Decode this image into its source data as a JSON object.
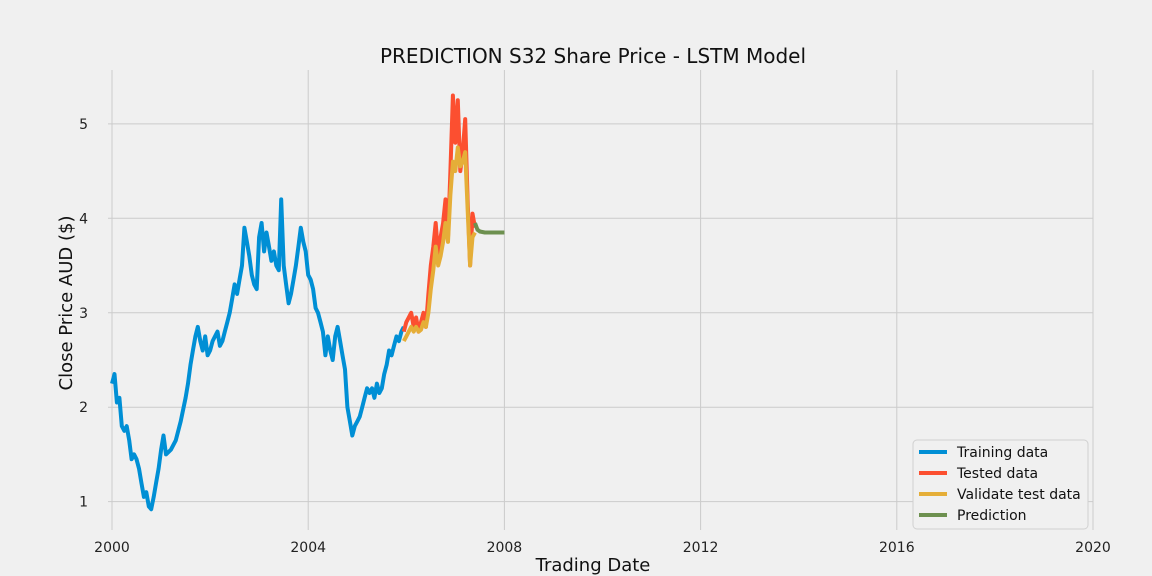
{
  "chart_data": {
    "type": "line",
    "title": "PREDICTION S32 Share Price - LSTM Model",
    "xlabel": "Trading Date",
    "ylabel": "Close Price AUD ($)",
    "xlim": [
      2000.0,
      2020.0
    ],
    "ylim": [
      0.7,
      5.57
    ],
    "xticks": [
      2000,
      2004,
      2008,
      2012,
      2016,
      2020
    ],
    "yticks": [
      1,
      2,
      3,
      4,
      5
    ],
    "grid": true,
    "legend_position": "bottom-right",
    "series": [
      {
        "name": "Training data",
        "color": "#008fd5",
        "points": [
          [
            2000.0,
            2.25
          ],
          [
            2000.05,
            2.35
          ],
          [
            2000.1,
            2.05
          ],
          [
            2000.15,
            2.1
          ],
          [
            2000.2,
            1.8
          ],
          [
            2000.25,
            1.75
          ],
          [
            2000.3,
            1.8
          ],
          [
            2000.35,
            1.65
          ],
          [
            2000.4,
            1.45
          ],
          [
            2000.45,
            1.5
          ],
          [
            2000.5,
            1.45
          ],
          [
            2000.55,
            1.35
          ],
          [
            2000.6,
            1.2
          ],
          [
            2000.65,
            1.05
          ],
          [
            2000.7,
            1.1
          ],
          [
            2000.75,
            0.95
          ],
          [
            2000.8,
            0.92
          ],
          [
            2000.85,
            1.05
          ],
          [
            2000.9,
            1.2
          ],
          [
            2000.95,
            1.35
          ],
          [
            2001.0,
            1.55
          ],
          [
            2001.05,
            1.7
          ],
          [
            2001.1,
            1.5
          ],
          [
            2001.2,
            1.55
          ],
          [
            2001.3,
            1.65
          ],
          [
            2001.4,
            1.85
          ],
          [
            2001.5,
            2.1
          ],
          [
            2001.55,
            2.25
          ],
          [
            2001.6,
            2.45
          ],
          [
            2001.65,
            2.6
          ],
          [
            2001.7,
            2.75
          ],
          [
            2001.75,
            2.85
          ],
          [
            2001.8,
            2.7
          ],
          [
            2001.85,
            2.6
          ],
          [
            2001.9,
            2.75
          ],
          [
            2001.95,
            2.55
          ],
          [
            2002.0,
            2.6
          ],
          [
            2002.05,
            2.7
          ],
          [
            2002.1,
            2.75
          ],
          [
            2002.15,
            2.8
          ],
          [
            2002.2,
            2.65
          ],
          [
            2002.25,
            2.7
          ],
          [
            2002.3,
            2.8
          ],
          [
            2002.35,
            2.9
          ],
          [
            2002.4,
            3.0
          ],
          [
            2002.45,
            3.15
          ],
          [
            2002.5,
            3.3
          ],
          [
            2002.55,
            3.2
          ],
          [
            2002.6,
            3.35
          ],
          [
            2002.65,
            3.5
          ],
          [
            2002.7,
            3.9
          ],
          [
            2002.75,
            3.75
          ],
          [
            2002.8,
            3.6
          ],
          [
            2002.85,
            3.4
          ],
          [
            2002.9,
            3.3
          ],
          [
            2002.95,
            3.25
          ],
          [
            2003.0,
            3.8
          ],
          [
            2003.05,
            3.95
          ],
          [
            2003.1,
            3.65
          ],
          [
            2003.15,
            3.85
          ],
          [
            2003.2,
            3.7
          ],
          [
            2003.25,
            3.55
          ],
          [
            2003.3,
            3.65
          ],
          [
            2003.35,
            3.5
          ],
          [
            2003.4,
            3.45
          ],
          [
            2003.45,
            4.2
          ],
          [
            2003.5,
            3.5
          ],
          [
            2003.55,
            3.3
          ],
          [
            2003.6,
            3.1
          ],
          [
            2003.65,
            3.2
          ],
          [
            2003.7,
            3.35
          ],
          [
            2003.75,
            3.5
          ],
          [
            2003.8,
            3.7
          ],
          [
            2003.85,
            3.9
          ],
          [
            2003.9,
            3.75
          ],
          [
            2003.95,
            3.65
          ],
          [
            2004.0,
            3.4
          ],
          [
            2004.05,
            3.35
          ],
          [
            2004.1,
            3.25
          ],
          [
            2004.15,
            3.05
          ],
          [
            2004.2,
            3.0
          ],
          [
            2004.25,
            2.9
          ],
          [
            2004.3,
            2.8
          ],
          [
            2004.35,
            2.55
          ],
          [
            2004.4,
            2.75
          ],
          [
            2004.45,
            2.6
          ],
          [
            2004.5,
            2.5
          ],
          [
            2004.55,
            2.75
          ],
          [
            2004.6,
            2.85
          ],
          [
            2004.65,
            2.7
          ],
          [
            2004.7,
            2.55
          ],
          [
            2004.75,
            2.4
          ],
          [
            2004.8,
            2.0
          ],
          [
            2004.85,
            1.85
          ],
          [
            2004.9,
            1.7
          ],
          [
            2004.95,
            1.8
          ],
          [
            2005.0,
            1.85
          ],
          [
            2005.05,
            1.9
          ],
          [
            2005.1,
            2.0
          ],
          [
            2005.15,
            2.1
          ],
          [
            2005.2,
            2.2
          ],
          [
            2005.25,
            2.15
          ],
          [
            2005.3,
            2.2
          ],
          [
            2005.35,
            2.1
          ],
          [
            2005.4,
            2.25
          ],
          [
            2005.45,
            2.15
          ],
          [
            2005.5,
            2.2
          ],
          [
            2005.55,
            2.35
          ],
          [
            2005.6,
            2.45
          ],
          [
            2005.65,
            2.6
          ],
          [
            2005.7,
            2.55
          ],
          [
            2005.75,
            2.65
          ],
          [
            2005.8,
            2.75
          ],
          [
            2005.85,
            2.7
          ],
          [
            2005.9,
            2.8
          ],
          [
            2005.95,
            2.85
          ]
        ]
      },
      {
        "name": "Tested data",
        "color": "#fc4f30",
        "points": [
          [
            2005.95,
            2.8
          ],
          [
            2006.0,
            2.9
          ],
          [
            2006.05,
            2.95
          ],
          [
            2006.1,
            3.0
          ],
          [
            2006.15,
            2.85
          ],
          [
            2006.2,
            2.95
          ],
          [
            2006.25,
            2.8
          ],
          [
            2006.3,
            2.9
          ],
          [
            2006.35,
            3.0
          ],
          [
            2006.4,
            2.85
          ],
          [
            2006.45,
            3.2
          ],
          [
            2006.5,
            3.5
          ],
          [
            2006.55,
            3.7
          ],
          [
            2006.6,
            3.95
          ],
          [
            2006.65,
            3.6
          ],
          [
            2006.7,
            3.8
          ],
          [
            2006.75,
            3.95
          ],
          [
            2006.8,
            4.2
          ],
          [
            2006.85,
            3.8
          ],
          [
            2006.9,
            4.5
          ],
          [
            2006.95,
            5.3
          ],
          [
            2007.0,
            4.8
          ],
          [
            2007.05,
            5.25
          ],
          [
            2007.1,
            4.5
          ],
          [
            2007.15,
            4.7
          ],
          [
            2007.2,
            5.05
          ],
          [
            2007.25,
            4.2
          ],
          [
            2007.3,
            3.5
          ],
          [
            2007.35,
            4.05
          ],
          [
            2007.4,
            3.9
          ]
        ]
      },
      {
        "name": "Validate test data",
        "color": "#e5ae38",
        "points": [
          [
            2005.95,
            2.7
          ],
          [
            2006.0,
            2.75
          ],
          [
            2006.05,
            2.8
          ],
          [
            2006.1,
            2.85
          ],
          [
            2006.15,
            2.8
          ],
          [
            2006.2,
            2.85
          ],
          [
            2006.25,
            2.8
          ],
          [
            2006.3,
            2.82
          ],
          [
            2006.35,
            2.9
          ],
          [
            2006.4,
            2.85
          ],
          [
            2006.45,
            3.0
          ],
          [
            2006.5,
            3.25
          ],
          [
            2006.55,
            3.45
          ],
          [
            2006.6,
            3.7
          ],
          [
            2006.65,
            3.5
          ],
          [
            2006.7,
            3.6
          ],
          [
            2006.75,
            3.75
          ],
          [
            2006.8,
            3.95
          ],
          [
            2006.85,
            3.75
          ],
          [
            2006.9,
            4.25
          ],
          [
            2006.95,
            4.6
          ],
          [
            2007.0,
            4.5
          ],
          [
            2007.05,
            4.75
          ],
          [
            2007.1,
            4.55
          ],
          [
            2007.15,
            4.6
          ],
          [
            2007.2,
            4.7
          ],
          [
            2007.25,
            4.1
          ],
          [
            2007.3,
            3.5
          ],
          [
            2007.35,
            3.8
          ],
          [
            2007.4,
            3.85
          ]
        ]
      },
      {
        "name": "Prediction",
        "color": "#6d904f",
        "points": [
          [
            2007.4,
            3.95
          ],
          [
            2007.45,
            3.88
          ],
          [
            2007.5,
            3.86
          ],
          [
            2007.6,
            3.85
          ],
          [
            2007.8,
            3.85
          ],
          [
            2008.0,
            3.85
          ]
        ]
      }
    ]
  }
}
